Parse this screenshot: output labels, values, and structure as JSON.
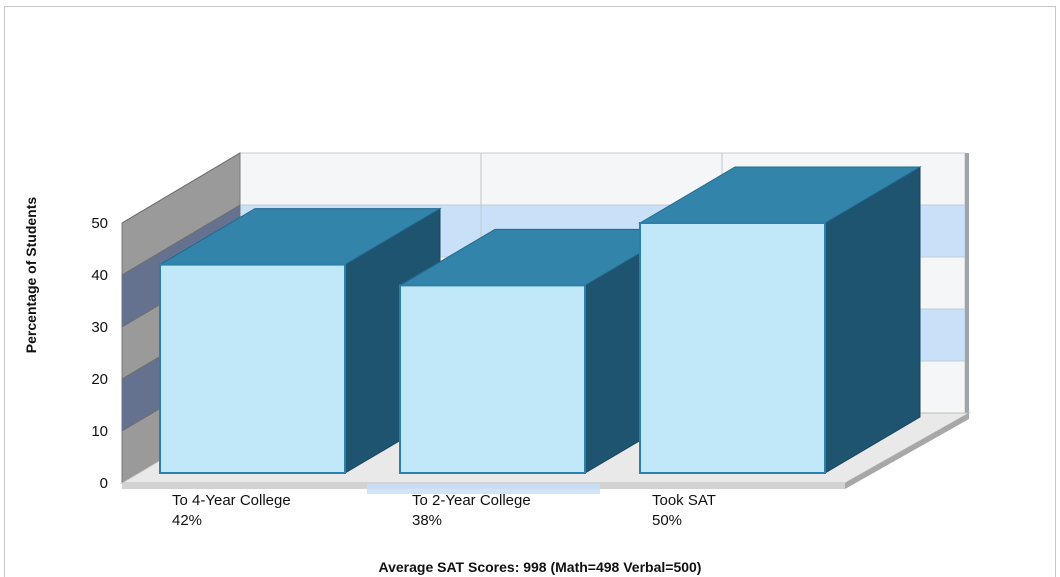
{
  "chart_data": {
    "type": "bar",
    "title": "",
    "ylabel": "Percentage of Students",
    "xlabel": "Average SAT Scores: 998 (Math=498 Verbal=500)",
    "ylim": [
      0,
      50
    ],
    "yticks": [
      0,
      10,
      20,
      30,
      40,
      50
    ],
    "categories": [
      "To 4-Year College",
      "To 2-Year College",
      "Took SAT"
    ],
    "value_labels": [
      "42%",
      "38%",
      "50%"
    ],
    "values": [
      42,
      38,
      50
    ],
    "grid": true,
    "three_d": true,
    "colors": {
      "bar_front": "#c0e8f8",
      "bar_front_edge": "#2c7fa8",
      "bar_top": "#3384aa",
      "bar_side": "#1f5470",
      "band": "#c8e0f8",
      "band_side": "#5e6e8e",
      "wall_side": "#9a9a9a",
      "floor": "#e9e9e9"
    }
  }
}
